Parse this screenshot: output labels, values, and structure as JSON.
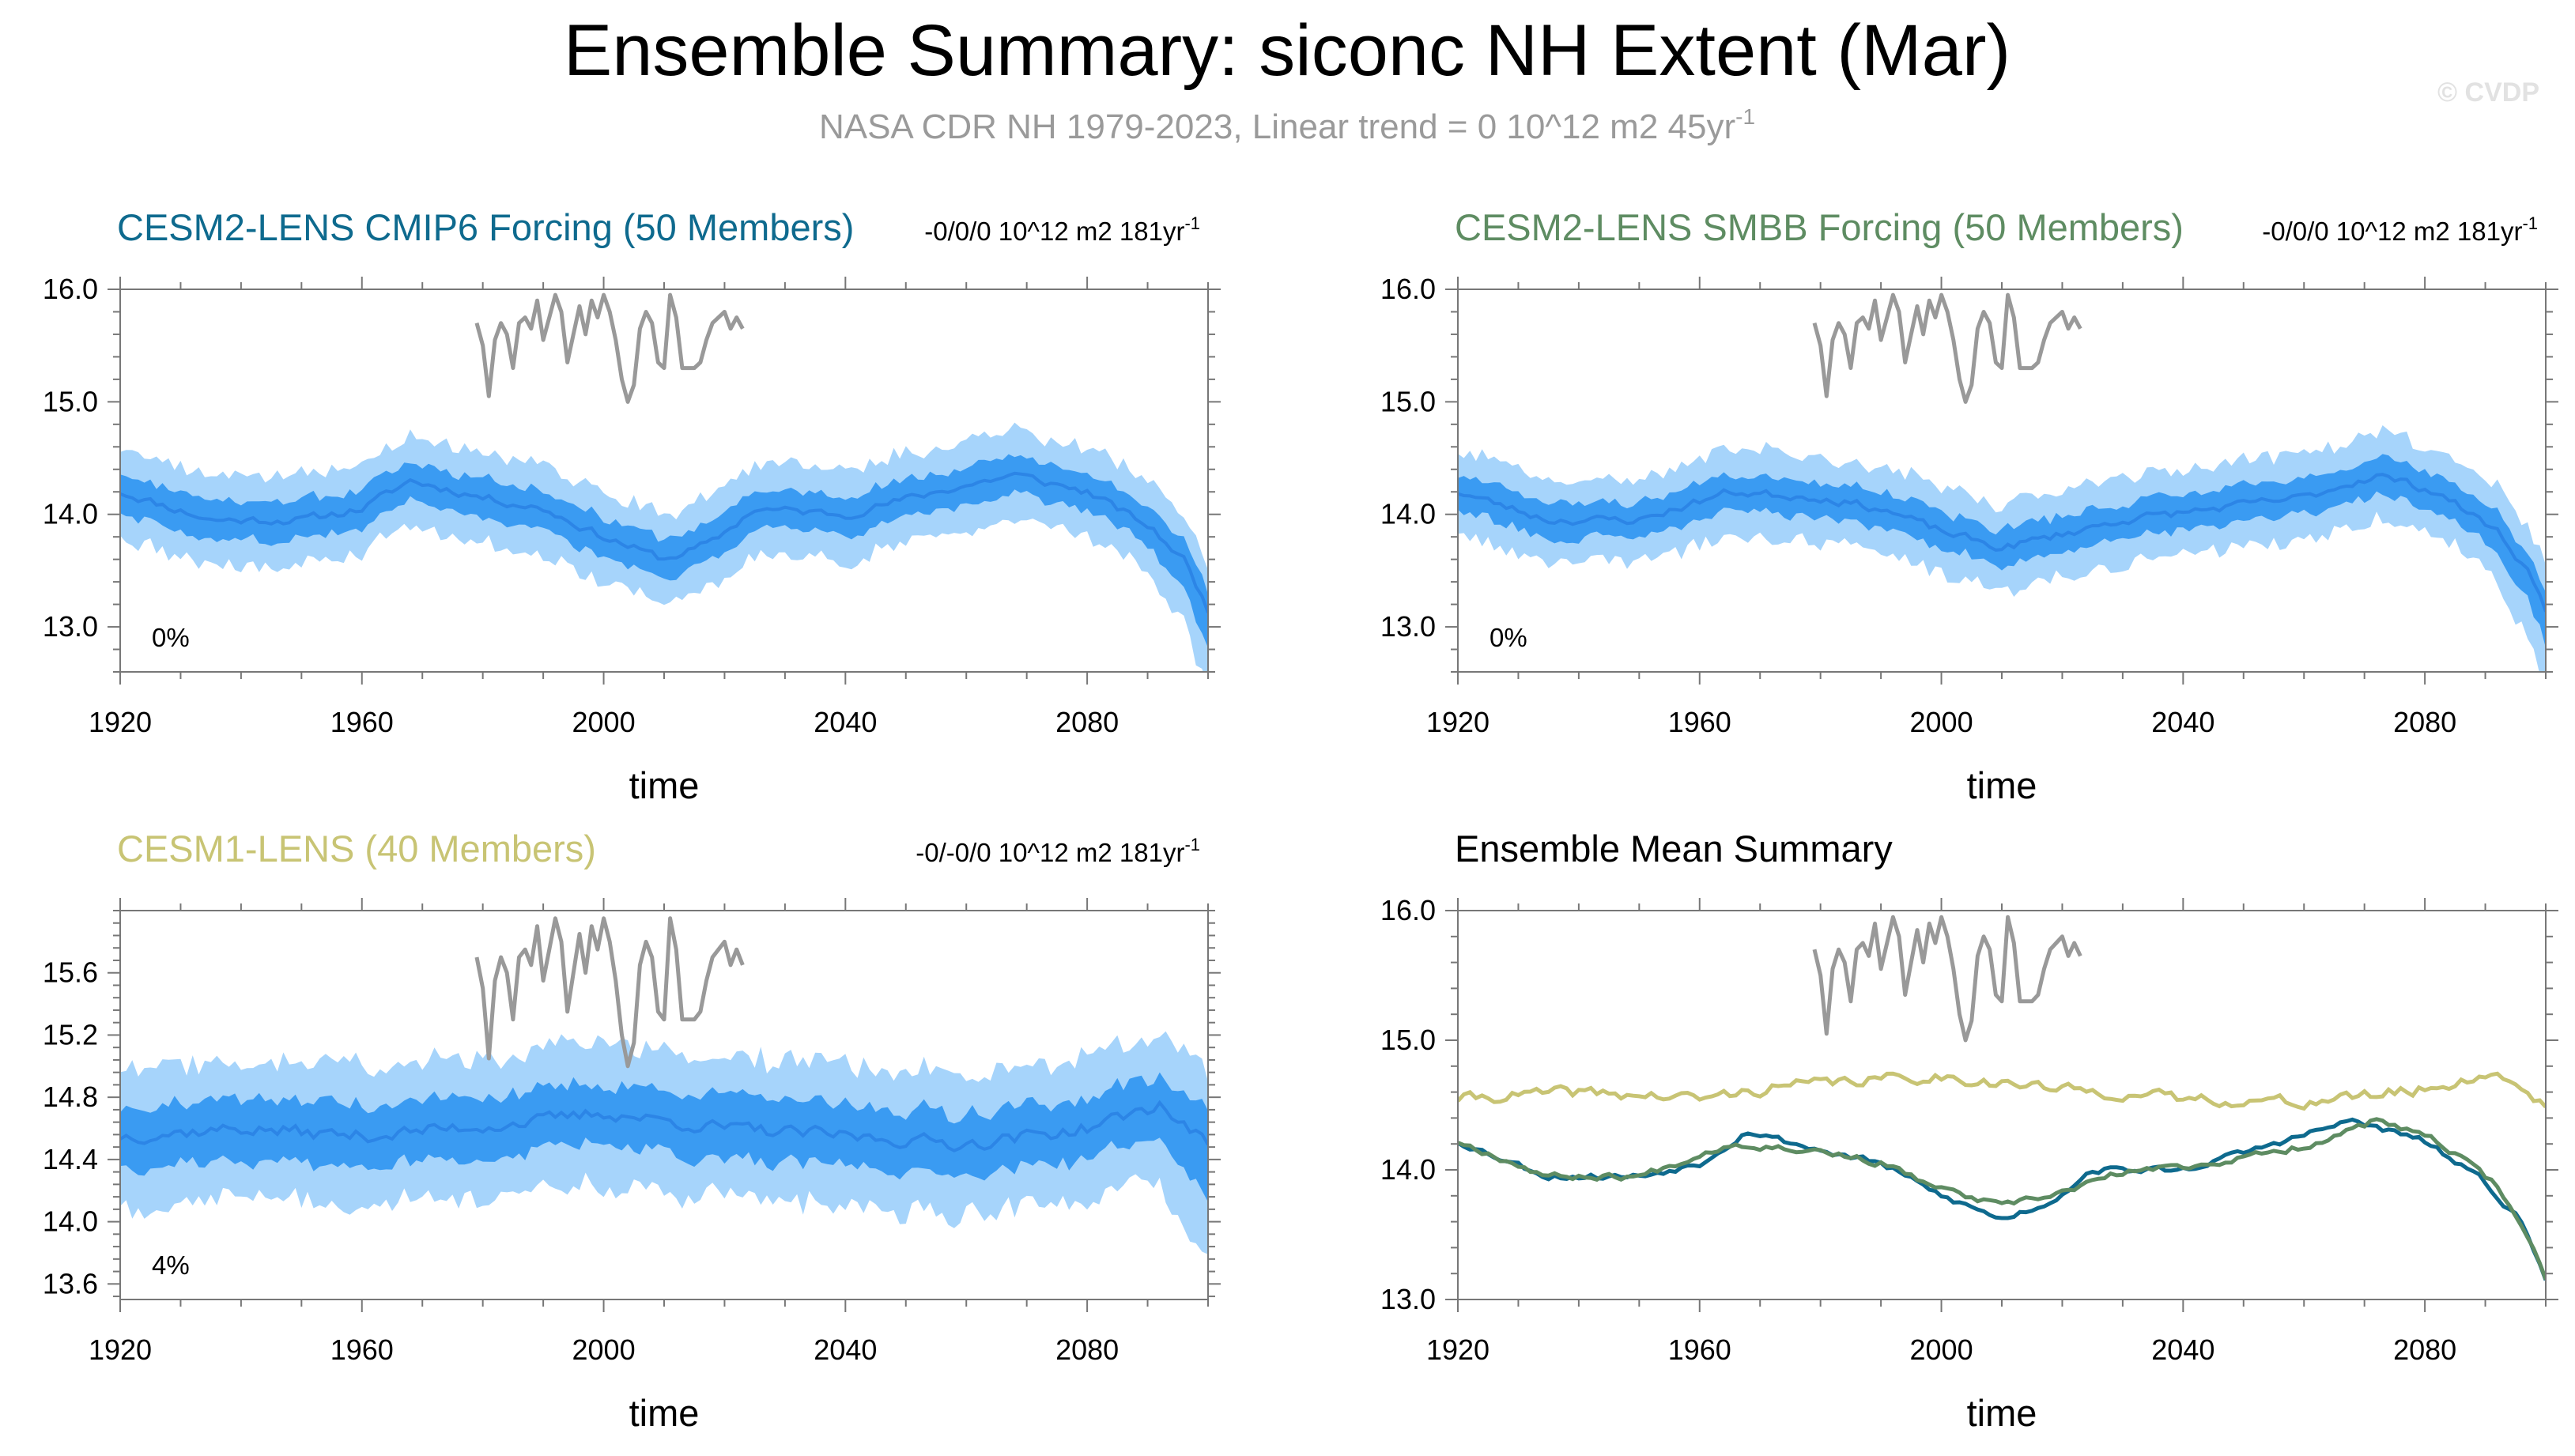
{
  "figure": {
    "title": "Ensemble Summary: siconc NH Extent (Mar)",
    "subtitle": "NASA CDR NH 1979-2023, Linear trend = 0 10^12 m2 45yr",
    "subtitle_superscript": "-1",
    "watermark": "© CVDP"
  },
  "colors": {
    "cmip6": "#0e6a8e",
    "smbb": "#5e8c62",
    "cesm1": "#c8c474",
    "band_outer": "#a6d4fb",
    "band_inner": "#3a9bf2",
    "ens_mean_line": "#2c85e6",
    "observations": "#999999",
    "axis": "#777777"
  },
  "chart_data": [
    {
      "id": "cmip6",
      "type": "line",
      "title": "CESM2-LENS CMIP6 Forcing (50 Members)",
      "title_color_key": "cmip6",
      "trend_text": "-0/0/0 10^12 m2 181yr",
      "trend_superscript": "-1",
      "corner_label": "0%",
      "xlabel": "time",
      "xlim": [
        1920,
        2100
      ],
      "ylim": [
        12.6,
        16.0
      ],
      "xticks": [
        1920,
        1960,
        2000,
        2040,
        2080
      ],
      "yticks": [
        13.0,
        14.0,
        15.0,
        16.0
      ],
      "tick_decimals": 1,
      "ensemble_mean_knots": [
        [
          1920,
          14.2
        ],
        [
          1935,
          13.95
        ],
        [
          1950,
          13.95
        ],
        [
          1960,
          14.05
        ],
        [
          1968,
          14.3
        ],
        [
          1980,
          14.15
        ],
        [
          1990,
          14.05
        ],
        [
          2000,
          13.8
        ],
        [
          2010,
          13.6
        ],
        [
          2018,
          13.75
        ],
        [
          2025,
          14.05
        ],
        [
          2040,
          14.0
        ],
        [
          2055,
          14.2
        ],
        [
          2068,
          14.35
        ],
        [
          2080,
          14.2
        ],
        [
          2090,
          13.9
        ],
        [
          2096,
          13.6
        ],
        [
          2100,
          13.15
        ]
      ],
      "inner_halfwidth": 0.17,
      "outer_halfwidth": 0.4,
      "noise": 0.06,
      "seed": 11
    },
    {
      "id": "smbb",
      "type": "line",
      "title": "CESM2-LENS SMBB Forcing (50 Members)",
      "title_color_key": "smbb",
      "trend_text": "-0/0/0 10^12 m2 181yr",
      "trend_superscript": "-1",
      "corner_label": "0%",
      "xlabel": "time",
      "xlim": [
        1920,
        2100
      ],
      "ylim": [
        12.6,
        16.0
      ],
      "xticks": [
        1920,
        1960,
        2000,
        2040,
        2080
      ],
      "yticks": [
        13.0,
        14.0,
        15.0,
        16.0
      ],
      "tick_decimals": 1,
      "ensemble_mean_knots": [
        [
          1920,
          14.2
        ],
        [
          1935,
          13.95
        ],
        [
          1950,
          13.95
        ],
        [
          1965,
          14.2
        ],
        [
          1980,
          14.15
        ],
        [
          1990,
          14.05
        ],
        [
          2000,
          13.85
        ],
        [
          2010,
          13.7
        ],
        [
          2018,
          13.8
        ],
        [
          2030,
          13.95
        ],
        [
          2045,
          14.05
        ],
        [
          2060,
          14.15
        ],
        [
          2072,
          14.35
        ],
        [
          2082,
          14.2
        ],
        [
          2092,
          13.85
        ],
        [
          2097,
          13.5
        ],
        [
          2100,
          13.15
        ]
      ],
      "inner_halfwidth": 0.16,
      "outer_halfwidth": 0.38,
      "noise": 0.06,
      "seed": 23
    },
    {
      "id": "cesm1",
      "type": "line",
      "title": "CESM1-LENS (40 Members)",
      "title_color_key": "cesm1",
      "trend_text": "-0/-0/0 10^12 m2 181yr",
      "trend_superscript": "-1",
      "corner_label": "4%",
      "xlabel": "time",
      "xlim": [
        1920,
        2100
      ],
      "ylim": [
        13.5,
        16.0
      ],
      "xticks": [
        1920,
        1960,
        2000,
        2040,
        2080
      ],
      "yticks": [
        13.6,
        14.0,
        14.4,
        14.8,
        15.2,
        15.6
      ],
      "tick_decimals": 1,
      "ensemble_mean_knots": [
        [
          1920,
          14.55
        ],
        [
          1940,
          14.6
        ],
        [
          1960,
          14.55
        ],
        [
          1975,
          14.6
        ],
        [
          1990,
          14.65
        ],
        [
          2000,
          14.7
        ],
        [
          2020,
          14.6
        ],
        [
          2040,
          14.55
        ],
        [
          2060,
          14.5
        ],
        [
          2080,
          14.6
        ],
        [
          2092,
          14.75
        ],
        [
          2100,
          14.5
        ]
      ],
      "inner_halfwidth": 0.2,
      "outer_halfwidth": 0.45,
      "noise": 0.07,
      "seed": 37
    },
    {
      "id": "summary",
      "type": "line",
      "title": "Ensemble Mean Summary",
      "title_color": "#000000",
      "xlabel": "time",
      "xlim": [
        1920,
        2100
      ],
      "ylim": [
        13.0,
        16.0
      ],
      "xticks": [
        1920,
        1960,
        2000,
        2040,
        2080
      ],
      "yticks": [
        13.0,
        14.0,
        15.0,
        16.0
      ],
      "tick_decimals": 1,
      "series": [
        {
          "name": "CESM1-LENS",
          "color_key": "cesm1",
          "knots": [
            [
              1920,
              14.55
            ],
            [
              1940,
              14.6
            ],
            [
              1960,
              14.55
            ],
            [
              1975,
              14.65
            ],
            [
              1990,
              14.7
            ],
            [
              2000,
              14.72
            ],
            [
              2020,
              14.62
            ],
            [
              2040,
              14.55
            ],
            [
              2060,
              14.52
            ],
            [
              2080,
              14.62
            ],
            [
              2092,
              14.75
            ],
            [
              2100,
              14.5
            ]
          ],
          "noise": 0.07,
          "seed": 41
        },
        {
          "name": "CESM2-LENS CMIP6 Forcing",
          "color_key": "cmip6",
          "knots": [
            [
              1920,
              14.22
            ],
            [
              1935,
              13.95
            ],
            [
              1950,
              13.95
            ],
            [
              1960,
              14.05
            ],
            [
              1968,
              14.3
            ],
            [
              1980,
              14.15
            ],
            [
              1990,
              14.05
            ],
            [
              2000,
              13.8
            ],
            [
              2010,
              13.62
            ],
            [
              2018,
              13.75
            ],
            [
              2025,
              14.0
            ],
            [
              2040,
              14.0
            ],
            [
              2055,
              14.2
            ],
            [
              2068,
              14.38
            ],
            [
              2080,
              14.22
            ],
            [
              2090,
              13.9
            ],
            [
              2096,
              13.6
            ],
            [
              2100,
              13.15
            ]
          ],
          "noise": 0.04,
          "seed": 53
        },
        {
          "name": "CESM2-LENS SMBB Forcing",
          "color_key": "smbb",
          "knots": [
            [
              1920,
              14.22
            ],
            [
              1935,
              13.95
            ],
            [
              1950,
              13.95
            ],
            [
              1965,
              14.2
            ],
            [
              1980,
              14.15
            ],
            [
              1990,
              14.05
            ],
            [
              2000,
              13.85
            ],
            [
              2010,
              13.72
            ],
            [
              2018,
              13.8
            ],
            [
              2030,
              13.98
            ],
            [
              2045,
              14.05
            ],
            [
              2060,
              14.18
            ],
            [
              2072,
              14.38
            ],
            [
              2082,
              14.22
            ],
            [
              2092,
              13.88
            ],
            [
              2097,
              13.5
            ],
            [
              2100,
              13.15
            ]
          ],
          "noise": 0.04,
          "seed": 67
        }
      ]
    }
  ],
  "observations": {
    "name": "NASA CDR NH",
    "years": [
      1979,
      1980,
      1981,
      1982,
      1983,
      1984,
      1985,
      1986,
      1987,
      1988,
      1989,
      1990,
      1991,
      1992,
      1993,
      1994,
      1995,
      1996,
      1997,
      1998,
      1999,
      2000,
      2001,
      2002,
      2003,
      2004,
      2005,
      2006,
      2007,
      2008,
      2009,
      2010,
      2011,
      2012,
      2013,
      2014,
      2015,
      2016,
      2017,
      2018,
      2019,
      2020,
      2021,
      2022,
      2023
    ],
    "values": [
      15.7,
      15.5,
      15.05,
      15.55,
      15.7,
      15.6,
      15.3,
      15.7,
      15.75,
      15.65,
      15.9,
      15.55,
      15.75,
      15.95,
      15.8,
      15.35,
      15.6,
      15.85,
      15.6,
      15.9,
      15.75,
      15.95,
      15.8,
      15.55,
      15.2,
      15.0,
      15.15,
      15.65,
      15.8,
      15.7,
      15.35,
      15.3,
      15.95,
      15.75,
      15.3,
      15.3,
      15.3,
      15.35,
      15.55,
      15.7,
      15.75,
      15.8,
      15.65,
      15.75,
      15.65
    ]
  }
}
